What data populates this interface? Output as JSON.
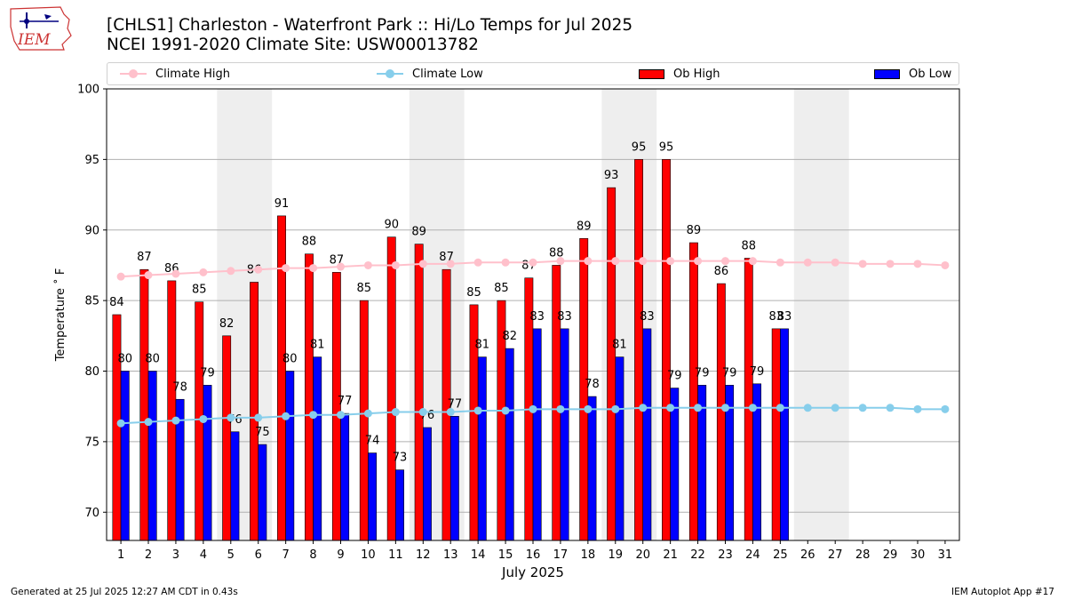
{
  "header": {
    "title_line1": "[CHLS1] Charleston - Waterfront Park :: Hi/Lo Temps for Jul 2025",
    "title_line2": "NCEI 1991-2020 Climate Site: USW00013782",
    "logo_text": "IEM"
  },
  "legend": {
    "climate_high": "Climate High",
    "climate_low": "Climate Low",
    "ob_high": "Ob High",
    "ob_low": "Ob Low"
  },
  "footer": {
    "left": "Generated at 25 Jul 2025 12:27 AM CDT in 0.43s",
    "right": "IEM Autoplot App #17"
  },
  "colors": {
    "ob_high": "#ff0000",
    "ob_low": "#0000ff",
    "climate_high": "#ffc0cb",
    "climate_low": "#87ceeb",
    "weekend_shade": "#eeeeee",
    "grid": "#b0b0b0"
  },
  "chart_data": {
    "type": "bar",
    "xlabel": "July 2025",
    "ylabel": "Temperature ˚ F",
    "ylim": [
      68,
      100
    ],
    "yticks": [
      70,
      75,
      80,
      85,
      90,
      95,
      100
    ],
    "grid": "horizontal",
    "legend_position": "top",
    "days": [
      1,
      2,
      3,
      4,
      5,
      6,
      7,
      8,
      9,
      10,
      11,
      12,
      13,
      14,
      15,
      16,
      17,
      18,
      19,
      20,
      21,
      22,
      23,
      24,
      25,
      26,
      27,
      28,
      29,
      30,
      31
    ],
    "weekend_shaded_days": [
      [
        5,
        6
      ],
      [
        12,
        13
      ],
      [
        19,
        20
      ],
      [
        26,
        27
      ]
    ],
    "series": [
      {
        "name": "Ob High",
        "kind": "bar",
        "values": [
          84,
          87,
          86,
          85,
          82,
          86,
          91,
          88,
          87,
          85,
          90,
          89,
          87,
          85,
          85,
          87,
          88,
          89,
          93,
          95,
          95,
          89,
          86,
          88,
          83
        ],
        "heights": [
          84,
          87.2,
          86.4,
          84.9,
          82.5,
          86.3,
          91,
          88.3,
          87,
          85,
          89.5,
          89,
          87.2,
          84.7,
          85,
          86.6,
          87.5,
          89.4,
          93,
          95,
          95,
          89.1,
          86.2,
          88,
          83
        ]
      },
      {
        "name": "Ob Low",
        "kind": "bar",
        "values": [
          80,
          80,
          78,
          79,
          76,
          75,
          80,
          81,
          77,
          74,
          73,
          76,
          77,
          81,
          82,
          83,
          83,
          78,
          81,
          83,
          79,
          79,
          79,
          79,
          83
        ],
        "heights": [
          80,
          80,
          78,
          79,
          75.7,
          74.8,
          80,
          81,
          77,
          74.2,
          73,
          76,
          76.8,
          81,
          81.6,
          83,
          83,
          78.2,
          81,
          83,
          78.8,
          79,
          79,
          79.1,
          83
        ]
      },
      {
        "name": "Climate High",
        "kind": "line",
        "values": [
          86.7,
          86.8,
          86.9,
          87.0,
          87.1,
          87.2,
          87.3,
          87.3,
          87.4,
          87.5,
          87.5,
          87.6,
          87.6,
          87.7,
          87.7,
          87.7,
          87.8,
          87.8,
          87.8,
          87.8,
          87.8,
          87.8,
          87.8,
          87.8,
          87.7,
          87.7,
          87.7,
          87.6,
          87.6,
          87.6,
          87.5
        ]
      },
      {
        "name": "Climate Low",
        "kind": "line",
        "values": [
          76.3,
          76.4,
          76.5,
          76.6,
          76.7,
          76.7,
          76.8,
          76.9,
          76.9,
          77.0,
          77.1,
          77.1,
          77.1,
          77.2,
          77.2,
          77.3,
          77.3,
          77.3,
          77.3,
          77.4,
          77.4,
          77.4,
          77.4,
          77.4,
          77.4,
          77.4,
          77.4,
          77.4,
          77.4,
          77.3,
          77.3
        ]
      }
    ]
  }
}
